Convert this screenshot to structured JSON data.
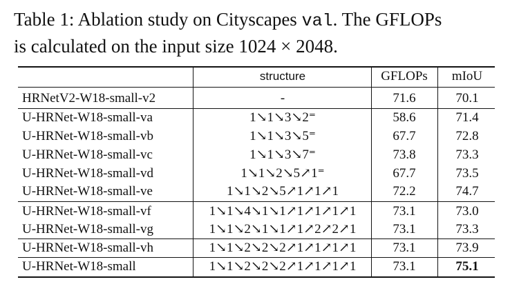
{
  "caption": {
    "prefix": "Table 1: Ablation study on Cityscapes ",
    "mono": "val",
    "suffix": ". The GFLOPs",
    "line2": "is calculated on the input size 1024 × 2048."
  },
  "table": {
    "headers": {
      "name": "",
      "structure": "structure",
      "gflops": "GFLOPs",
      "miou": "mIoU"
    },
    "rows": [
      {
        "name": "HRNetV2-W18-small-v2",
        "structure": "-",
        "gflops": "71.6",
        "miou": "70.1"
      },
      {
        "name": "U-HRNet-W18-small-va",
        "structure": "1↘1↘3↘2⁼",
        "gflops": "58.6",
        "miou": "71.4"
      },
      {
        "name": "U-HRNet-W18-small-vb",
        "structure": "1↘1↘3↘5⁼",
        "gflops": "67.7",
        "miou": "72.8"
      },
      {
        "name": "U-HRNet-W18-small-vc",
        "structure": "1↘1↘3↘7⁼",
        "gflops": "73.8",
        "miou": "73.3"
      },
      {
        "name": "U-HRNet-W18-small-vd",
        "structure": "1↘1↘2↘5↗1⁼",
        "gflops": "67.7",
        "miou": "73.5"
      },
      {
        "name": "U-HRNet-W18-small-ve",
        "structure": "1↘1↘2↘5↗1↗1↗1",
        "gflops": "72.2",
        "miou": "74.7"
      },
      {
        "name": "U-HRNet-W18-small-vf",
        "structure": "1↘1↘4↘1↘1↗1↗1↗1↗1",
        "gflops": "73.1",
        "miou": "73.0"
      },
      {
        "name": "U-HRNet-W18-small-vg",
        "structure": "1↘1↘2↘1↘1↗1↗2↗2↗1",
        "gflops": "73.1",
        "miou": "73.3"
      },
      {
        "name": "U-HRNet-W18-small-vh",
        "structure": "1↘1↘2↘2↘2↗1↗1↗1↗1",
        "gflops": "73.1",
        "miou": "73.9"
      },
      {
        "name": "U-HRNet-W18-small",
        "structure": "1↘1↘2↘2↘2↗1↗1↗1↗1",
        "gflops": "73.1",
        "miou": "75.1"
      }
    ]
  }
}
